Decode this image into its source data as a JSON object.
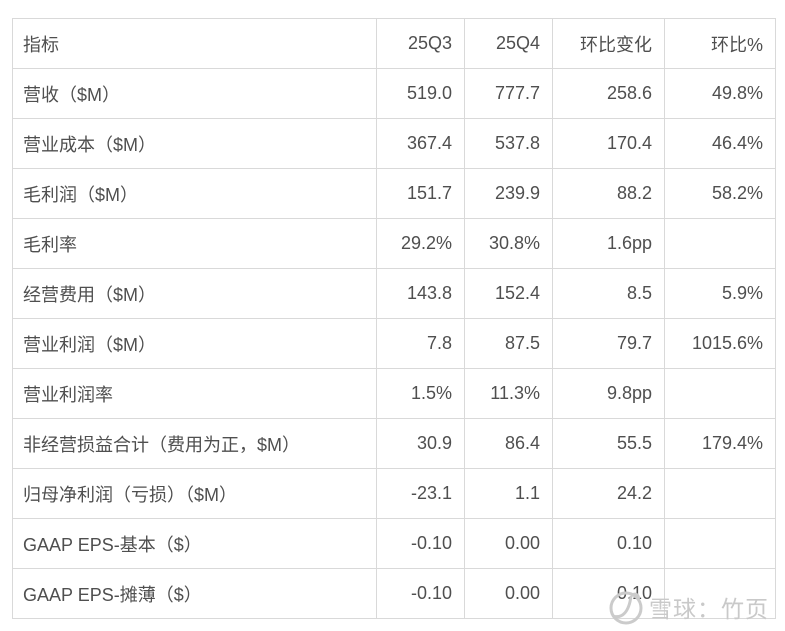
{
  "chart_data": {
    "type": "table",
    "columns": [
      "指标",
      "25Q3",
      "25Q4",
      "环比变化",
      "环比%"
    ],
    "rows": [
      [
        "营收（$M）",
        "519.0",
        "777.7",
        "258.6",
        "49.8%"
      ],
      [
        "营业成本（$M）",
        "367.4",
        "537.8",
        "170.4",
        "46.4%"
      ],
      [
        "毛利润（$M）",
        "151.7",
        "239.9",
        "88.2",
        "58.2%"
      ],
      [
        "毛利率",
        "29.2%",
        "30.8%",
        "1.6pp",
        ""
      ],
      [
        "经营费用（$M）",
        "143.8",
        "152.4",
        "8.5",
        "5.9%"
      ],
      [
        "营业利润（$M）",
        "7.8",
        "87.5",
        "79.7",
        "1015.6%"
      ],
      [
        "营业利润率",
        "1.5%",
        "11.3%",
        "9.8pp",
        ""
      ],
      [
        "非经营损益合计（费用为正，$M）",
        "30.9",
        "86.4",
        "55.5",
        "179.4%"
      ],
      [
        "归母净利润（亏损）（$M）",
        "-23.1",
        "1.1",
        "24.2",
        ""
      ],
      [
        "GAAP EPS-基本（$）",
        "-0.10",
        "0.00",
        "0.10",
        ""
      ],
      [
        "GAAP EPS-摊薄（$）",
        "-0.10",
        "0.00",
        "0.10",
        ""
      ]
    ]
  },
  "watermark": {
    "text": "雪球：竹页",
    "icon": "xueqiu-snowball-icon"
  },
  "colors": {
    "text": "#4f4f4f",
    "border": "#d9d9d9",
    "watermark": "#c9c9c9",
    "background": "#ffffff"
  }
}
